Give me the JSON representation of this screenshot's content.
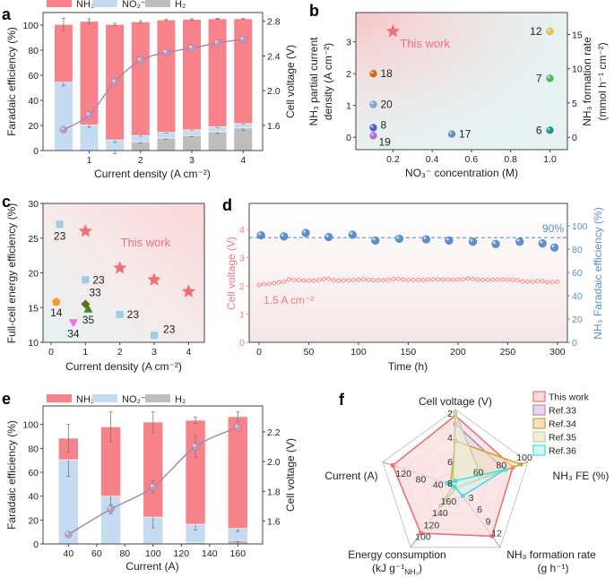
{
  "chart_data": [
    {
      "panel_label": "a",
      "type": "bar",
      "legend": [
        "NH₃",
        "NO₂⁻",
        "H₂"
      ],
      "colors": {
        "NH3": "#f8828a",
        "NO2": "#c5dbf2",
        "H2": "#bdbdbd",
        "voltage": "#a684a9"
      },
      "xlabel": "Current density (A cm⁻²)",
      "ylabel": "Faradaic efficiency (%)",
      "y2label": "Cell voltage (V)",
      "xlim": [
        0.1,
        4.38
      ],
      "ylim": [
        0,
        110
      ],
      "y2lim": [
        1.31,
        2.9
      ],
      "xticks": [
        "1",
        "2",
        "3",
        "4"
      ],
      "yticks": [
        "0",
        "20",
        "40",
        "60",
        "80",
        "100"
      ],
      "y2ticks": [
        "1.6",
        "2.0",
        "2.4",
        "2.8"
      ],
      "x": [
        0.5,
        1,
        1.5,
        2,
        2.5,
        3,
        3.5,
        4
      ],
      "series": [
        {
          "name": "H₂",
          "values": [
            0,
            0,
            0,
            7,
            10,
            12,
            15,
            18
          ],
          "errors": [
            0,
            0,
            2.5,
            1,
            1,
            1,
            1.5,
            2
          ]
        },
        {
          "name": "NO₂⁻",
          "values": [
            54.5,
            20.5,
            8.5,
            5,
            4.5,
            4.5,
            4,
            3.5
          ],
          "errors": [
            3,
            2,
            2,
            0.5,
            0.5,
            0.5,
            0.5,
            0.5
          ]
        },
        {
          "name": "NH₃",
          "values": [
            46,
            82.5,
            92,
            90.5,
            89.5,
            88,
            86,
            83.5
          ],
          "errors": [
            5,
            2,
            1,
            1,
            0.5,
            0.5,
            0.3,
            0.2
          ]
        }
      ],
      "voltage": [
        1.55,
        1.72,
        2.1,
        2.35,
        2.44,
        2.49,
        2.55,
        2.59
      ]
    },
    {
      "panel_label": "b",
      "type": "scatter",
      "xlabel": "NO₃⁻ concentration (M)",
      "ylabel_lines": [
        "NH₃ partial current",
        "density (A cm⁻²)"
      ],
      "y2label_lines": [
        "NH₃ formation rate",
        "(mmol h⁻¹ cm⁻²)"
      ],
      "xlim": [
        0.011,
        1.089
      ],
      "ylim": [
        -0.39,
        3.92
      ],
      "y2lim": [
        -1.8,
        18.2
      ],
      "xticks": [
        "0.2",
        "0.4",
        "0.6",
        "0.8",
        "1.0"
      ],
      "yticks": [
        "0",
        "1",
        "2",
        "3"
      ],
      "y2ticks": [
        "0",
        "5",
        "10",
        "15"
      ],
      "annotation": "This work",
      "this_work": {
        "x": 0.2,
        "y": 3.33,
        "color": "#f07078",
        "marker": "star"
      },
      "points": [
        {
          "label": "12",
          "x": 1.0,
          "y": 3.33,
          "color": "#f4c040"
        },
        {
          "label": "18",
          "x": 0.1,
          "y": 2.0,
          "color": "#d8680e"
        },
        {
          "label": "7",
          "x": 1.0,
          "y": 1.85,
          "color": "#3cc060"
        },
        {
          "label": "20",
          "x": 0.1,
          "y": 1.03,
          "color": "#7ba7d8"
        },
        {
          "label": "8",
          "x": 0.1,
          "y": 0.3,
          "color": "#4a5fe0"
        },
        {
          "label": "19",
          "x": 0.1,
          "y": 0.05,
          "color": "#b06ee8"
        },
        {
          "label": "17",
          "x": 0.5,
          "y": 0.1,
          "color": "#6a8fc0"
        },
        {
          "label": "6",
          "x": 1.0,
          "y": 0.22,
          "color": "#109a90"
        }
      ]
    },
    {
      "panel_label": "c",
      "type": "scatter",
      "xlabel": "Current density (A cm⁻²)",
      "ylabel": "Full-cell energy efficiency (%)",
      "xlim": [
        -0.235,
        4.46
      ],
      "ylim": [
        10,
        30
      ],
      "xticks": [
        "0",
        "1",
        "2",
        "3",
        "4"
      ],
      "yticks": [
        "10",
        "15",
        "20",
        "25",
        "30"
      ],
      "annotation": "This work",
      "this_work": {
        "color": "#f07078",
        "marker": "star",
        "x": [
          1,
          2,
          3,
          4
        ],
        "y": [
          26,
          20.7,
          19,
          17.3
        ]
      },
      "points": [
        {
          "label": "23",
          "x": 0.25,
          "y": 27,
          "color": "#9ccde0",
          "marker": "square"
        },
        {
          "label": "23",
          "x": 1,
          "y": 19,
          "color": "#9ccde0",
          "marker": "square"
        },
        {
          "label": "23",
          "x": 2,
          "y": 14,
          "color": "#9ccde0",
          "marker": "square"
        },
        {
          "label": "23",
          "x": 3,
          "y": 11,
          "color": "#9ccde0",
          "marker": "square"
        },
        {
          "label": "14",
          "x": 0.15,
          "y": 15.8,
          "color": "#f89a20",
          "marker": "pentagon"
        },
        {
          "label": "33",
          "x": 1.0,
          "y": 15.5,
          "color": "#6b6b12",
          "marker": "diamond"
        },
        {
          "label": "35",
          "x": 1.08,
          "y": 14.8,
          "color": "#3a8a2a",
          "marker": "triangle"
        },
        {
          "label": "34",
          "x": 0.65,
          "y": 12.8,
          "color": "#f070f0",
          "marker": "triangle-down"
        }
      ]
    },
    {
      "panel_label": "d",
      "type": "line",
      "xlabel": "Time (h)",
      "ylabel": "Cell voltage (V)",
      "y2label": "NH₃ Faradaic efficiency (%)",
      "colors": {
        "voltage": "#f07a80",
        "fe": "#5b8fd0"
      },
      "xlim": [
        -9.9,
        310
      ],
      "ylim": [
        0,
        4.92
      ],
      "y2lim": [
        0,
        119.4
      ],
      "xticks": [
        "0",
        "50",
        "100",
        "150",
        "200",
        "250",
        "300"
      ],
      "yticks": [
        "0",
        "1",
        "2",
        "3",
        "4"
      ],
      "y2ticks": [
        "0",
        "20",
        "40",
        "60",
        "80",
        "100"
      ],
      "reference_line": {
        "value": 90,
        "label": "90%"
      },
      "current_label": "1.5 A cm⁻²",
      "voltage_series": {
        "x": [
          0,
          5,
          10,
          15,
          20,
          25,
          30,
          35,
          40,
          45,
          50,
          55,
          60,
          65,
          70,
          75,
          80,
          85,
          90,
          95,
          100,
          105,
          110,
          115,
          120,
          125,
          130,
          135,
          140,
          145,
          150,
          155,
          160,
          165,
          170,
          175,
          180,
          185,
          190,
          195,
          200,
          205,
          210,
          215,
          220,
          225,
          230,
          235,
          240,
          245,
          250,
          255,
          260,
          265,
          270,
          275,
          280,
          285,
          290,
          295,
          300
        ],
        "y": [
          2.03,
          2.06,
          2.07,
          2.1,
          2.12,
          2.15,
          2.23,
          2.21,
          2.2,
          2.19,
          2.19,
          2.18,
          2.2,
          2.24,
          2.25,
          2.2,
          2.18,
          2.19,
          2.2,
          2.2,
          2.21,
          2.23,
          2.21,
          2.2,
          2.2,
          2.2,
          2.21,
          2.24,
          2.25,
          2.22,
          2.21,
          2.21,
          2.21,
          2.2,
          2.22,
          2.23,
          2.23,
          2.22,
          2.22,
          2.21,
          2.22,
          2.23,
          2.26,
          2.24,
          2.22,
          2.21,
          2.21,
          2.21,
          2.22,
          2.22,
          2.21,
          2.21,
          2.2,
          2.16,
          2.15,
          2.15,
          2.17,
          2.16,
          2.13,
          2.13,
          2.15
        ]
      },
      "fe_series": {
        "x": [
          2,
          25,
          47,
          70,
          94,
          117,
          141,
          168,
          191,
          215,
          238,
          262,
          285,
          297
        ],
        "y": [
          92,
          91,
          94,
          90.5,
          92.5,
          87.5,
          89,
          88.5,
          87.5,
          86.5,
          84.5,
          86.5,
          85,
          81.5
        ]
      }
    },
    {
      "panel_label": "e",
      "type": "bar",
      "legend": [
        "NH₃",
        "NO₂⁻",
        "H₂"
      ],
      "colors": {
        "NH3": "#f8828a",
        "NO2": "#c5dbf2",
        "H2": "#bdbdbd",
        "voltage": "#a684a9"
      },
      "xlabel": "Current (A)",
      "ylabel": "Faradaic efficiency (%)",
      "y2label": "Cell voltage (V)",
      "xlim": [
        22,
        177.6
      ],
      "ylim": [
        0,
        115.5
      ],
      "y2lim": [
        1.446,
        2.374
      ],
      "xticks": [
        "40",
        "60",
        "80",
        "100",
        "120",
        "140",
        "160"
      ],
      "yticks": [
        "0",
        "20",
        "40",
        "60",
        "80",
        "100"
      ],
      "y2ticks": [
        "1.6",
        "1.8",
        "2.0",
        "2.2"
      ],
      "x": [
        40,
        70,
        100,
        130,
        160
      ],
      "series": [
        {
          "name": "H₂",
          "values": [
            0,
            0,
            0,
            1,
            3
          ],
          "errors": [
            0,
            0,
            0,
            1,
            1.5
          ]
        },
        {
          "name": "NO₂⁻",
          "values": [
            70.5,
            40,
            22.5,
            15.5,
            10
          ],
          "errors": [
            14,
            12.5,
            9,
            5,
            2.5
          ]
        },
        {
          "name": "NH₃",
          "values": [
            18,
            58,
            79.5,
            87,
            93.5
          ],
          "errors": [
            11.5,
            12.5,
            8.5,
            2.5,
            4
          ]
        }
      ],
      "voltage": [
        1.51,
        1.68,
        1.83,
        2.1,
        2.23
      ],
      "voltage_errors": [
        0,
        0.03,
        0.04,
        0.07,
        0
      ]
    },
    {
      "panel_label": "f",
      "type": "radar",
      "axes": [
        {
          "label": "Cell voltage (V)",
          "center": 8,
          "outer": 2,
          "ticks": [
            "2",
            "4",
            "6",
            "8"
          ]
        },
        {
          "label": "NH₃ FE (%)",
          "center": 40,
          "outer": 100,
          "ticks": [
            "60",
            "80",
            "100"
          ]
        },
        {
          "label": "NH₃ formation rate",
          "label2": "(g h⁻¹)",
          "center": 0,
          "outer": 15,
          "ticks": [
            "3",
            "6",
            "9",
            "12"
          ]
        },
        {
          "label": "Energy consumption",
          "label2_parts": [
            "(kJ g⁻¹",
            "NH₃",
            ")"
          ],
          "center": 180,
          "outer": 80,
          "ticks": [
            "160",
            "140",
            "120",
            "100"
          ]
        },
        {
          "label": "Current (A)",
          "center": 0,
          "outer": 160,
          "ticks": [
            "40",
            "80",
            "120"
          ]
        }
      ],
      "series": [
        {
          "name": "This work",
          "color": "#f07070",
          "fill": "#fadadd",
          "values": [
            2.2,
            90,
            12.9,
            99,
            145
          ]
        },
        {
          "name": "Ref.33",
          "color": "#b08cc0",
          "fill": "#e6d8ec",
          "values": [
            2.9,
            83,
            0.3,
            180,
            5
          ]
        },
        {
          "name": "Ref.34",
          "color": "#d4a030",
          "fill": "#f2e2bc",
          "values": [
            4.3,
            97,
            0.5,
            178,
            11
          ]
        },
        {
          "name": "Ref.35",
          "color": "#c2d49a",
          "fill": "#ecf0dc",
          "values": [
            2.0,
            63,
            0.5,
            146,
            5
          ]
        },
        {
          "name": "Ref.36",
          "color": "#40e0e0",
          "fill": "#cff5f5",
          "values": [
            7.6,
            83,
            2.6,
            178,
            19
          ]
        }
      ]
    }
  ]
}
